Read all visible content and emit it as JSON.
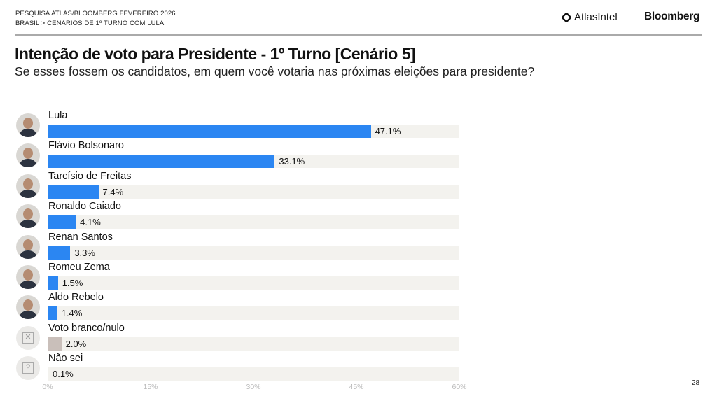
{
  "header": {
    "line1": "PESQUISA ATLAS/BLOOMBERG FEVEREIRO 2026",
    "line2": "BRASIL > CENÁRIOS DE 1º TURNO COM LULA",
    "logo_atlas": "AtlasIntel",
    "logo_bloomberg": "Bloomberg"
  },
  "page_number": "28",
  "chart_data": {
    "type": "bar",
    "orientation": "horizontal",
    "title": "Intenção de voto para Presidente - 1º Turno [Cenário 5]",
    "subtitle": "Se esses fossem os candidatos, em quem você votaria nas próximas eleições para presidente?",
    "categories": [
      "Lula",
      "Flávio Bolsonaro",
      "Tarcísio de Freitas",
      "Ronaldo Caiado",
      "Renan Santos",
      "Romeu Zema",
      "Aldo Rebelo",
      "Voto branco/nulo",
      "Não sei"
    ],
    "values": [
      47.1,
      33.1,
      7.4,
      4.1,
      3.3,
      1.5,
      1.4,
      2.0,
      0.1
    ],
    "labels": [
      "47.1%",
      "33.1%",
      "7.4%",
      "4.1%",
      "3.3%",
      "1.5%",
      "1.4%",
      "2.0%",
      "0.1%"
    ],
    "colors": [
      "#2b86f2",
      "#2b86f2",
      "#2b86f2",
      "#2b86f2",
      "#2b86f2",
      "#2b86f2",
      "#2b86f2",
      "#c9bfba",
      "#d9c98a"
    ],
    "icons": [
      "person",
      "person",
      "person",
      "person",
      "person",
      "person",
      "person",
      "x-box-icon",
      "question-box-icon"
    ],
    "xlim": [
      0,
      60
    ],
    "xticks": [
      "0%",
      "15%",
      "30%",
      "45%",
      "60%"
    ],
    "xtick_values": [
      0,
      15,
      30,
      45,
      60
    ],
    "xlabel": "",
    "ylabel": "",
    "grid": false
  }
}
